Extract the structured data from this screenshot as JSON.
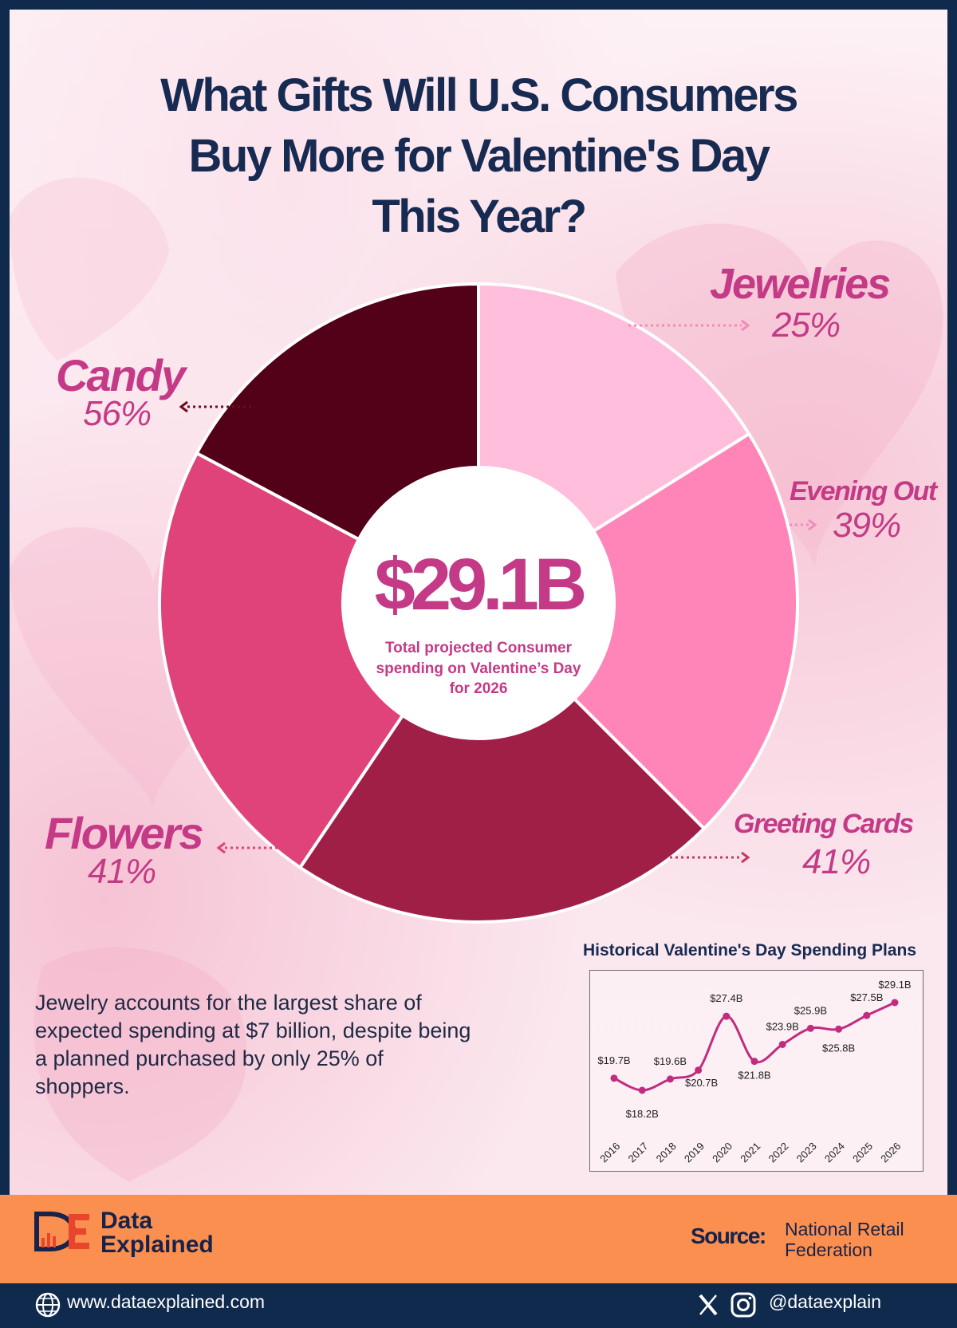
{
  "title_lines": [
    "What Gifts Will U.S. Consumers",
    "Buy More for Valentine's Day",
    "This Year?"
  ],
  "center": {
    "value": "$29.1B",
    "caption_lines": [
      "Total projected Consumer",
      "spending on Valentine’s Day",
      "for 2026"
    ]
  },
  "colors": {
    "jewelries": "#ffbedc",
    "evening_out": "#ff84b8",
    "greeting_cards": "#a01f47",
    "flowers": "#e0427a",
    "candy": "#530019",
    "label": "#c43a86",
    "title": "#172b52",
    "footer": "#fb8f4f",
    "frame": "#0f2a4d"
  },
  "chart_data": [
    {
      "type": "pie",
      "categories": [
        "Jewelries",
        "Evening Out",
        "Greeting Cards",
        "Flowers",
        "Candy"
      ],
      "values": [
        25,
        39,
        41,
        41,
        56
      ],
      "labels": [
        "25%",
        "39%",
        "41%",
        "41%",
        "56%"
      ],
      "unit": "%"
    },
    {
      "type": "line",
      "title": "Historical Valentine's Day Spending Plans",
      "x": [
        "2016",
        "2017",
        "2018",
        "2019",
        "2020",
        "2021",
        "2022",
        "2023",
        "2024",
        "2025",
        "2026"
      ],
      "values": [
        19.7,
        18.2,
        19.6,
        20.7,
        27.4,
        21.8,
        23.9,
        25.9,
        25.8,
        27.5,
        29.1
      ],
      "labels": [
        "$19.7B",
        "$18.2B",
        "$19.6B",
        "$20.7B",
        "$27.4B",
        "$21.8B",
        "$23.9B",
        "$25.9B",
        "$25.8B",
        "$27.5B",
        "$29.1B"
      ]
    }
  ],
  "description": "Jewelry accounts for the largest share of expected spending at $7 billion, despite being a planned purchased by only 25% of shoppers.",
  "footer": {
    "brand_lines": [
      "Data",
      "Explained"
    ],
    "logo_letters": "DE",
    "source_label": "Source:",
    "source_value": "National Retail Federation",
    "website": "www.dataexplained.com",
    "handle": "@dataexplain",
    "icons": [
      "globe-icon",
      "x-logo-icon",
      "instagram-icon"
    ]
  }
}
